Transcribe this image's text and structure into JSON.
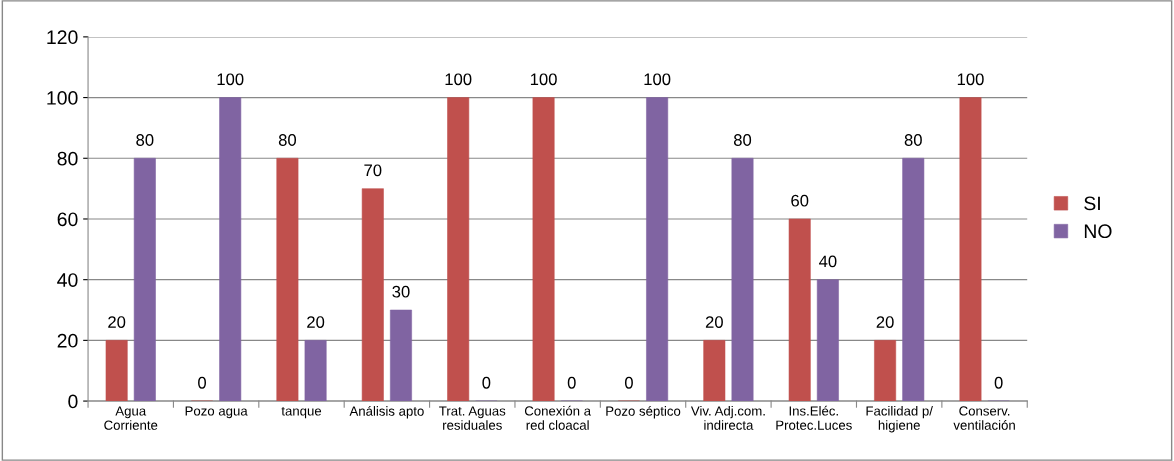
{
  "chart_data": {
    "type": "bar",
    "categories": [
      "Agua\nCorriente",
      "Pozo agua",
      "tanque",
      "Análisis apto",
      "Trat. Aguas\nresiduales",
      "Conexión a\nred cloacal",
      "Pozo séptico",
      "Viv. Adj.com.\nindirecta",
      "Ins.Eléc.\nProtec.Luces",
      "Facilidad p/\nhigiene",
      "Conserv.\nventilación"
    ],
    "series": [
      {
        "name": "SI",
        "color": "#c0504d",
        "values": [
          20,
          0,
          80,
          70,
          100,
          100,
          0,
          20,
          60,
          20,
          100
        ]
      },
      {
        "name": "NO",
        "color": "#8064a2",
        "values": [
          80,
          100,
          20,
          30,
          0,
          0,
          100,
          80,
          40,
          80,
          0
        ]
      }
    ],
    "ylim": [
      0,
      120
    ],
    "yticks": [
      0,
      20,
      40,
      60,
      80,
      100,
      120
    ],
    "grid": "y",
    "legend": "right",
    "data_labels": true
  }
}
